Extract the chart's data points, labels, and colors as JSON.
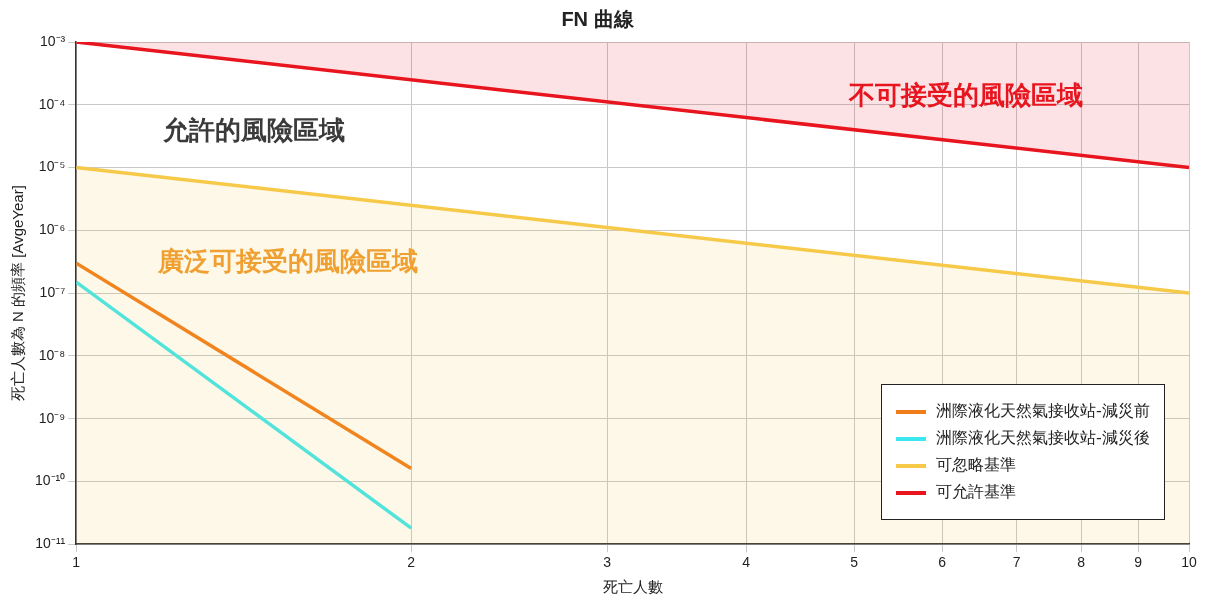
{
  "chart_data": {
    "type": "line",
    "title": "FN 曲線",
    "xlabel": "死亡人數",
    "ylabel": "死亡人數為 N 的頻率 [AvgeYear]",
    "log": "xy",
    "grid": true,
    "legend": "bottom right",
    "marker": "none",
    "line_style": "solid",
    "xlim": [
      1,
      10
    ],
    "xticks": [
      1,
      2,
      3,
      4,
      5,
      6,
      7,
      8,
      9,
      10
    ],
    "ylim": [
      1e-11,
      0.001
    ],
    "yticks": [
      {
        "value": 1e-11,
        "label": "10⁻¹¹"
      },
      {
        "value": 1e-10,
        "label": "10⁻¹⁰"
      },
      {
        "value": 1e-09,
        "label": "10⁻⁹"
      },
      {
        "value": 1e-08,
        "label": "10⁻⁸"
      },
      {
        "value": 1e-07,
        "label": "10⁻⁷"
      },
      {
        "value": 1e-06,
        "label": "10⁻⁶"
      },
      {
        "value": 1e-05,
        "label": "10⁻⁵"
      },
      {
        "value": 0.0001,
        "label": "10⁻⁴"
      },
      {
        "value": 0.001,
        "label": "10⁻³"
      }
    ],
    "series": [
      {
        "name": "洲際液化天然氣接收站-減災前",
        "color": "#f07d1a",
        "x": [
          1,
          2
        ],
        "values": [
          3e-07,
          1.6e-10
        ]
      },
      {
        "name": "洲際液化天然氣接收站-減災後",
        "color": "#3ce8f0",
        "x": [
          1,
          2
        ],
        "values": [
          1.5e-07,
          1.8e-11
        ]
      },
      {
        "name": "可忽略基準",
        "type": "area",
        "color": "#f7c948",
        "x": [
          1,
          10
        ],
        "values": [
          1e-05,
          1e-07
        ]
      },
      {
        "name": "可允許基準",
        "type": "area",
        "color": "#e8141e",
        "x": [
          1,
          10
        ],
        "values": [
          0.001,
          1e-05
        ]
      }
    ],
    "annotations": [
      "不可接受的風險區域",
      "允許的風險區域",
      "廣泛可接受的風險區域"
    ]
  }
}
